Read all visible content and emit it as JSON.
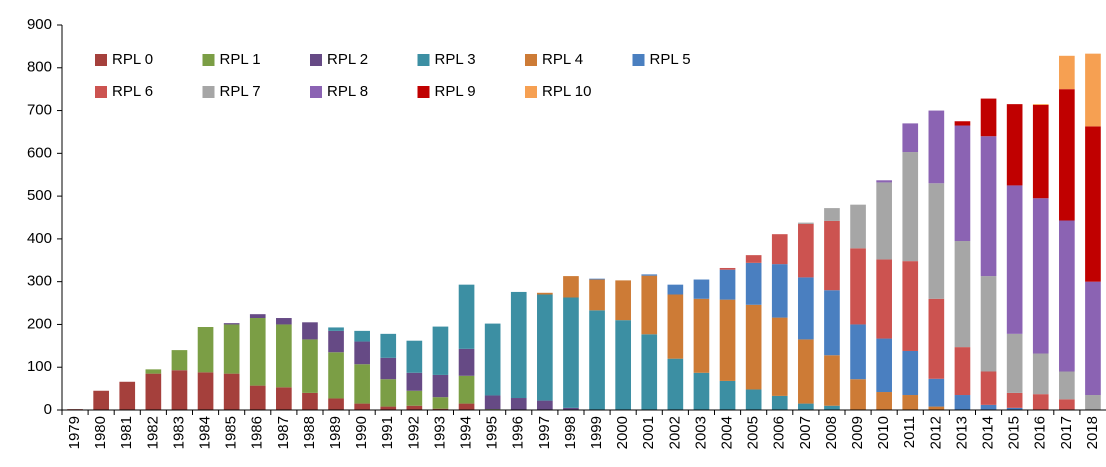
{
  "chart_data": {
    "type": "stacked_bar",
    "categories": [
      "1979",
      "1980",
      "1981",
      "1982",
      "1983",
      "1984",
      "1985",
      "1986",
      "1987",
      "1988",
      "1989",
      "1990",
      "1991",
      "1992",
      "1993",
      "1994",
      "1995",
      "1996",
      "1997",
      "1998",
      "1999",
      "2000",
      "2001",
      "2002",
      "2003",
      "2004",
      "2005",
      "2006",
      "2007",
      "2008",
      "2009",
      "2010",
      "2011",
      "2012",
      "2013",
      "2014",
      "2015",
      "2016",
      "2017",
      "2018"
    ],
    "series": [
      {
        "name": "RPL 0",
        "color": "#a5403c",
        "values": [
          2,
          45,
          66,
          85,
          93,
          88,
          85,
          57,
          53,
          40,
          27,
          15,
          8,
          10,
          3,
          15,
          0,
          0,
          0,
          0,
          0,
          0,
          0,
          0,
          0,
          0,
          0,
          0,
          0,
          0,
          0,
          0,
          0,
          0,
          0,
          0,
          0,
          0,
          0,
          0
        ]
      },
      {
        "name": "RPL 1",
        "color": "#7b9e45",
        "values": [
          0,
          0,
          0,
          10,
          47,
          106,
          115,
          158,
          147,
          125,
          108,
          92,
          64,
          35,
          27,
          65,
          2,
          0,
          0,
          0,
          0,
          0,
          0,
          0,
          0,
          0,
          0,
          0,
          0,
          0,
          0,
          0,
          0,
          0,
          0,
          0,
          0,
          0,
          0,
          0
        ]
      },
      {
        "name": "RPL 2",
        "color": "#664a85",
        "values": [
          0,
          0,
          0,
          0,
          0,
          0,
          3,
          9,
          15,
          40,
          50,
          53,
          50,
          42,
          52,
          63,
          32,
          28,
          22,
          5,
          0,
          0,
          0,
          0,
          0,
          0,
          0,
          0,
          0,
          0,
          0,
          0,
          0,
          0,
          0,
          0,
          0,
          0,
          0,
          0
        ]
      },
      {
        "name": "RPL 3",
        "color": "#3c8fa3",
        "values": [
          0,
          0,
          0,
          0,
          0,
          0,
          0,
          0,
          0,
          0,
          8,
          25,
          56,
          75,
          113,
          150,
          168,
          248,
          248,
          258,
          233,
          210,
          177,
          120,
          87,
          68,
          48,
          33,
          15,
          10,
          0,
          0,
          0,
          0,
          0,
          0,
          0,
          0,
          0,
          0
        ]
      },
      {
        "name": "RPL 4",
        "color": "#cd7b36",
        "values": [
          0,
          0,
          0,
          0,
          0,
          0,
          0,
          0,
          0,
          0,
          0,
          0,
          0,
          0,
          0,
          0,
          0,
          0,
          4,
          50,
          72,
          93,
          137,
          150,
          173,
          190,
          198,
          183,
          150,
          118,
          72,
          42,
          35,
          8,
          0,
          0,
          0,
          0,
          0,
          0
        ]
      },
      {
        "name": "RPL 5",
        "color": "#4a7fc0",
        "values": [
          0,
          0,
          0,
          0,
          0,
          0,
          0,
          0,
          0,
          0,
          0,
          0,
          0,
          0,
          0,
          0,
          0,
          0,
          0,
          0,
          2,
          0,
          3,
          23,
          45,
          70,
          98,
          125,
          145,
          152,
          128,
          125,
          103,
          65,
          35,
          12,
          5,
          0,
          0,
          0
        ]
      },
      {
        "name": "RPL 6",
        "color": "#cc5350",
        "values": [
          0,
          0,
          0,
          0,
          0,
          0,
          0,
          0,
          0,
          0,
          0,
          0,
          0,
          0,
          0,
          0,
          0,
          0,
          0,
          0,
          0,
          0,
          0,
          0,
          0,
          4,
          18,
          70,
          125,
          162,
          178,
          185,
          210,
          187,
          112,
          78,
          35,
          37,
          25,
          0
        ]
      },
      {
        "name": "RPL 7",
        "color": "#a6a6a6",
        "values": [
          0,
          0,
          0,
          0,
          0,
          0,
          0,
          0,
          0,
          0,
          0,
          0,
          0,
          0,
          0,
          0,
          0,
          0,
          0,
          0,
          0,
          0,
          0,
          0,
          0,
          0,
          0,
          0,
          3,
          30,
          102,
          180,
          255,
          270,
          248,
          223,
          138,
          95,
          65,
          35
        ]
      },
      {
        "name": "RPL 8",
        "color": "#8b63b3",
        "values": [
          0,
          0,
          0,
          0,
          0,
          0,
          0,
          0,
          0,
          0,
          0,
          0,
          0,
          0,
          0,
          0,
          0,
          0,
          0,
          0,
          0,
          0,
          0,
          0,
          0,
          0,
          0,
          0,
          0,
          0,
          0,
          5,
          67,
          170,
          270,
          327,
          347,
          363,
          353,
          265
        ]
      },
      {
        "name": "RPL 9",
        "color": "#c00000",
        "values": [
          0,
          0,
          0,
          0,
          0,
          0,
          0,
          0,
          0,
          0,
          0,
          0,
          0,
          0,
          0,
          0,
          0,
          0,
          0,
          0,
          0,
          0,
          0,
          0,
          0,
          0,
          0,
          0,
          0,
          0,
          0,
          0,
          0,
          0,
          10,
          88,
          190,
          218,
          307,
          363
        ]
      },
      {
        "name": "RPL 10",
        "color": "#f6a052",
        "values": [
          0,
          0,
          0,
          0,
          0,
          0,
          0,
          0,
          0,
          0,
          0,
          0,
          0,
          0,
          0,
          0,
          0,
          0,
          0,
          0,
          0,
          0,
          0,
          0,
          0,
          0,
          0,
          0,
          0,
          0,
          0,
          0,
          0,
          0,
          0,
          0,
          0,
          2,
          78,
          170
        ]
      }
    ],
    "ylim": [
      0,
      900
    ],
    "yticks": [
      0,
      100,
      200,
      300,
      400,
      500,
      600,
      700,
      800,
      900
    ],
    "grid": false,
    "legend": "top-left"
  }
}
